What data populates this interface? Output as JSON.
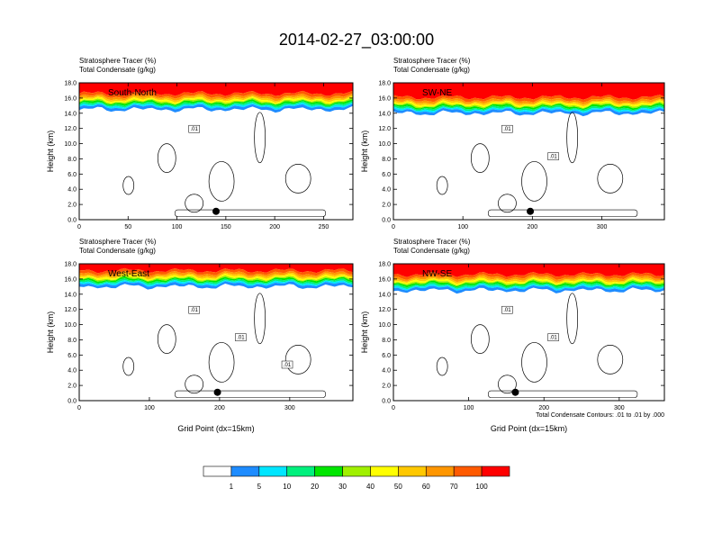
{
  "figure": {
    "title": "2014-02-27_03:00:00",
    "contour_note": "Total Condensate Contours: .01 to .01 by .000"
  },
  "colorbar": {
    "labels": [
      "1",
      "5",
      "10",
      "20",
      "30",
      "40",
      "50",
      "60",
      "70",
      "100"
    ],
    "colors": [
      "#ffffff",
      "#1e8cff",
      "#00e6ff",
      "#00f07d",
      "#00e600",
      "#a0f000",
      "#ffff00",
      "#ffc800",
      "#ff9600",
      "#ff5a00",
      "#ff0000"
    ]
  },
  "chart_data": [
    {
      "type": "heatmap",
      "panel_label": "South-North",
      "left_title": [
        "Stratosphere Tracer   (%)",
        "Total Condensate   (g/kg)"
      ],
      "ylabel": "Height (km)",
      "xlabel": "",
      "ylim": [
        0,
        18
      ],
      "xlim": [
        0,
        280
      ],
      "x_ticks": [
        "0",
        "50",
        "100",
        "150",
        "200",
        "250"
      ],
      "y_ticks": [
        "0.0",
        "2.0",
        "4.0",
        "6.0",
        "8.0",
        "10.0",
        "12.0",
        "14.0",
        "16.0",
        "18.0"
      ],
      "tracer_top_km": 15.0,
      "contour_labels": [
        ".01"
      ],
      "marker": {
        "x": 140,
        "y": 1.1
      }
    },
    {
      "type": "heatmap",
      "panel_label": "SW-NE",
      "left_title": [
        "Stratosphere Tracer   (%)",
        "Total Condensate   (g/kg)"
      ],
      "ylabel": "Height (km)",
      "xlabel": "",
      "ylim": [
        0,
        18
      ],
      "xlim": [
        0,
        390
      ],
      "x_ticks": [
        "0",
        "100",
        "200",
        "300"
      ],
      "y_ticks": [
        "0.0",
        "2.0",
        "4.0",
        "6.0",
        "8.0",
        "10.0",
        "12.0",
        "14.0",
        "16.0",
        "18.0"
      ],
      "tracer_top_km": 14.5,
      "contour_labels": [
        ".01",
        ".01"
      ],
      "marker": {
        "x": 197,
        "y": 1.1
      }
    },
    {
      "type": "heatmap",
      "panel_label": "West-East",
      "left_title": [
        "Stratosphere Tracer   (%)",
        "Total Condensate   (g/kg)"
      ],
      "ylabel": "Height (km)",
      "xlabel": "Grid Point (dx=15km)",
      "ylim": [
        0,
        18
      ],
      "xlim": [
        0,
        390
      ],
      "x_ticks": [
        "0",
        "100",
        "200",
        "300"
      ],
      "y_ticks": [
        "0.0",
        "2.0",
        "4.0",
        "6.0",
        "8.0",
        "10.0",
        "12.0",
        "14.0",
        "16.0",
        "18.0"
      ],
      "tracer_top_km": 15.5,
      "contour_labels": [
        ".01",
        ".01",
        ".01"
      ],
      "marker": {
        "x": 197,
        "y": 1.1
      }
    },
    {
      "type": "heatmap",
      "panel_label": "NW-SE",
      "left_title": [
        "Stratosphere Tracer   (%)",
        "Total Condensate   (g/kg)"
      ],
      "ylabel": "Height (km)",
      "xlabel": "Grid Point (dx=15km)",
      "ylim": [
        0,
        18
      ],
      "xlim": [
        0,
        360
      ],
      "x_ticks": [
        "0",
        "100",
        "200",
        "300"
      ],
      "y_ticks": [
        "0.0",
        "2.0",
        "4.0",
        "6.0",
        "8.0",
        "10.0",
        "12.0",
        "14.0",
        "16.0",
        "18.0"
      ],
      "tracer_top_km": 15.0,
      "contour_labels": [
        ".01",
        ".01"
      ],
      "marker": {
        "x": 162,
        "y": 1.1
      }
    }
  ]
}
